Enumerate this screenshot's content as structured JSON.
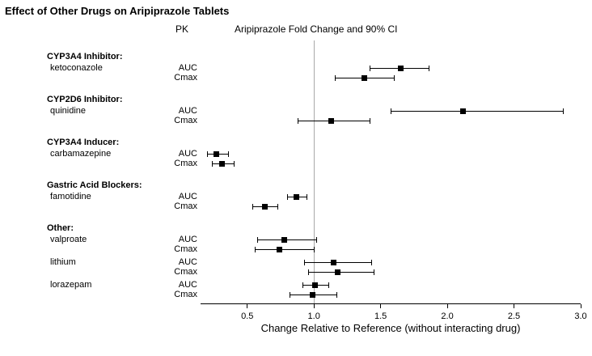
{
  "title": "Effect of Other Drugs on Aripiprazole Tablets",
  "header": {
    "pk_label": "PK",
    "plot_label": "Aripiprazole Fold Change and 90% CI"
  },
  "xaxis": {
    "label": "Change Relative to Reference (without interacting drug)",
    "tick_labels": [
      "0.5",
      "1.0",
      "1.5",
      "2.0",
      "2.5",
      "3.0"
    ],
    "min": 0.15,
    "max": 3.0,
    "reference": 1.0
  },
  "chart_data": {
    "type": "forest",
    "title": "Effect of Other Drugs on Aripiprazole Tablets",
    "xlabel": "Change Relative to Reference (without interacting drug)",
    "x_ticks": [
      0.5,
      1.0,
      1.5,
      2.0,
      2.5,
      3.0
    ],
    "xlim": [
      0.15,
      3.0
    ],
    "reference_line": 1.0,
    "ci_level": "90% CI",
    "legend_position": "none",
    "grid": false,
    "groups": [
      {
        "category": "CYP3A4 Inhibitor:",
        "drugs": [
          {
            "name": "ketoconazole",
            "measures": [
              {
                "pk": "AUC",
                "value": 1.65,
                "lo": 1.42,
                "hi": 1.86
              },
              {
                "pk": "Cmax",
                "value": 1.38,
                "lo": 1.16,
                "hi": 1.6
              }
            ]
          }
        ]
      },
      {
        "category": "CYP2D6 Inhibitor:",
        "drugs": [
          {
            "name": "quinidine",
            "measures": [
              {
                "pk": "AUC",
                "value": 2.12,
                "lo": 1.58,
                "hi": 2.87
              },
              {
                "pk": "Cmax",
                "value": 1.13,
                "lo": 0.88,
                "hi": 1.42
              }
            ]
          }
        ]
      },
      {
        "category": "CYP3A4 Inducer:",
        "drugs": [
          {
            "name": "carbamazepine",
            "measures": [
              {
                "pk": "AUC",
                "value": 0.27,
                "lo": 0.2,
                "hi": 0.36
              },
              {
                "pk": "Cmax",
                "value": 0.31,
                "lo": 0.24,
                "hi": 0.4
              }
            ]
          }
        ]
      },
      {
        "category": "Gastric Acid Blockers:",
        "drugs": [
          {
            "name": "famotidine",
            "measures": [
              {
                "pk": "AUC",
                "value": 0.87,
                "lo": 0.8,
                "hi": 0.95
              },
              {
                "pk": "Cmax",
                "value": 0.63,
                "lo": 0.54,
                "hi": 0.73
              }
            ]
          }
        ]
      },
      {
        "category": "Other:",
        "drugs": [
          {
            "name": "valproate",
            "measures": [
              {
                "pk": "AUC",
                "value": 0.78,
                "lo": 0.58,
                "hi": 1.02
              },
              {
                "pk": "Cmax",
                "value": 0.74,
                "lo": 0.56,
                "hi": 1.0
              }
            ]
          },
          {
            "name": "lithium",
            "measures": [
              {
                "pk": "AUC",
                "value": 1.15,
                "lo": 0.93,
                "hi": 1.43
              },
              {
                "pk": "Cmax",
                "value": 1.18,
                "lo": 0.96,
                "hi": 1.45
              }
            ]
          },
          {
            "name": "lorazepam",
            "measures": [
              {
                "pk": "AUC",
                "value": 1.01,
                "lo": 0.92,
                "hi": 1.11
              },
              {
                "pk": "Cmax",
                "value": 0.99,
                "lo": 0.82,
                "hi": 1.17
              }
            ]
          }
        ]
      }
    ]
  }
}
